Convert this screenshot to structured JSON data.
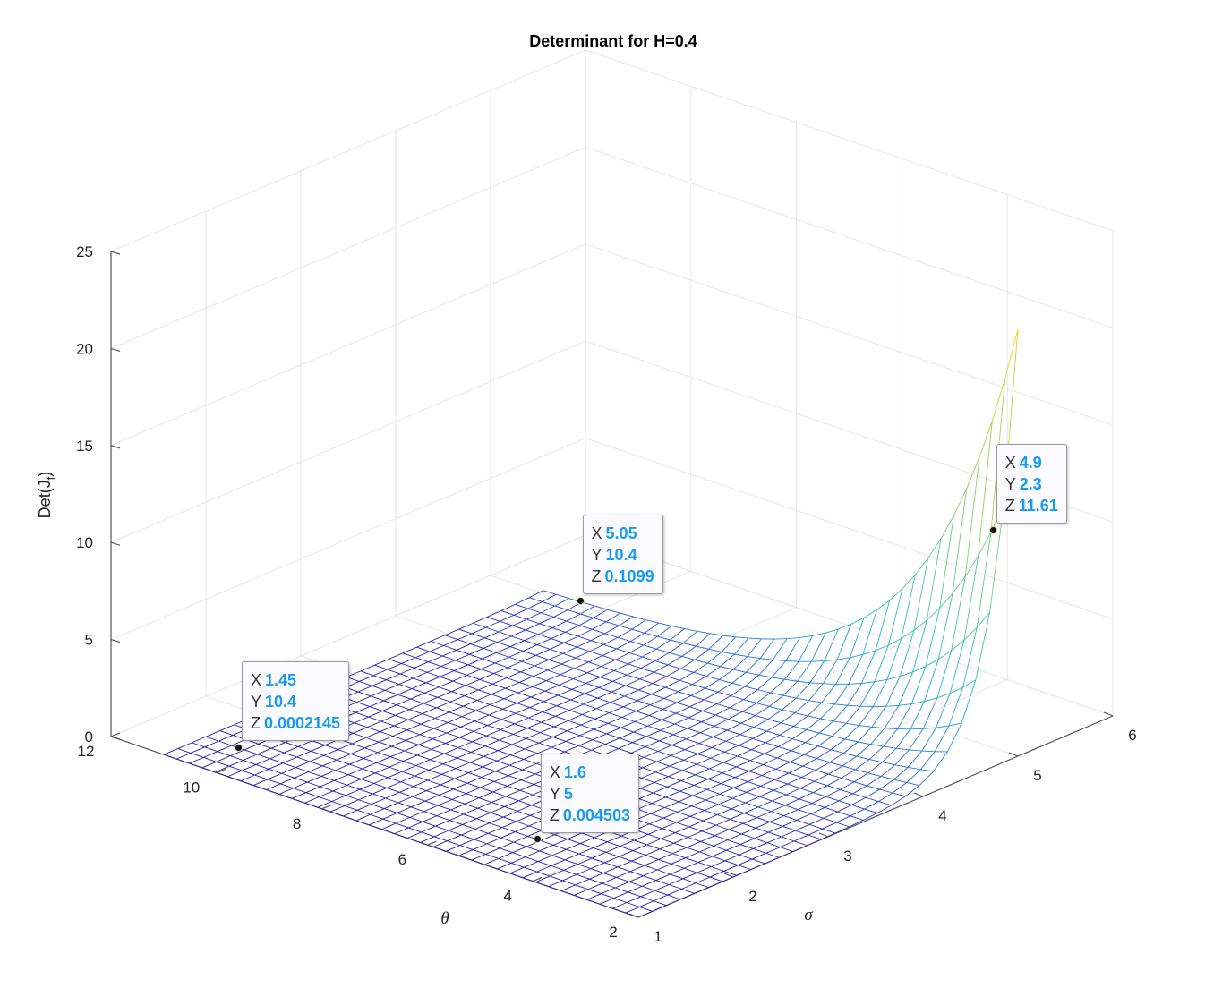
{
  "chart_data": {
    "type": "surface",
    "title": "Determinant for H=0.4",
    "xlabel": "σ",
    "ylabel": "θ",
    "zlabel": "Det(J",
    "zlabel_sub": "f",
    "zlabel_close": ")",
    "xlim": [
      1,
      6
    ],
    "ylim": [
      2,
      12
    ],
    "zlim": [
      0,
      25
    ],
    "x_ticks": [
      "1",
      "2",
      "3",
      "4",
      "5",
      "6"
    ],
    "y_ticks": [
      "2",
      "4",
      "6",
      "8",
      "10",
      "12"
    ],
    "z_ticks": [
      "0",
      "5",
      "10",
      "15",
      "20",
      "25"
    ],
    "grid": true,
    "surface_domain": {
      "x": [
        1,
        5
      ],
      "y": [
        2,
        11
      ]
    },
    "colormap": [
      "#2a1cb0",
      "#2b6de8",
      "#1fb8c9",
      "#6fd07a",
      "#e8d81c"
    ],
    "data_tips": [
      {
        "X": "1.45",
        "Y": "10.4",
        "Z": "0.0002145"
      },
      {
        "X": "5.05",
        "Y": "10.4",
        "Z": "0.1099"
      },
      {
        "X": "1.6",
        "Y": "5",
        "Z": "0.004503"
      },
      {
        "X": "4.9",
        "Y": "2.3",
        "Z": "11.61"
      }
    ]
  }
}
